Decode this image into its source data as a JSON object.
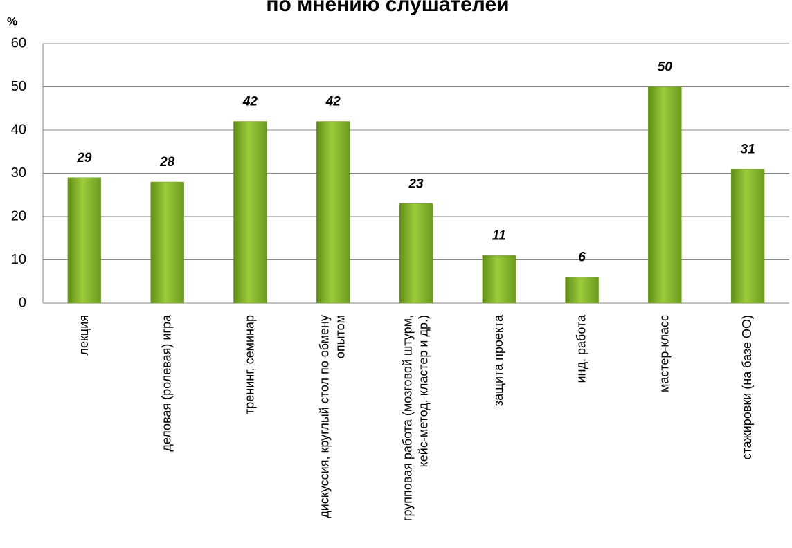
{
  "chart_data": {
    "type": "bar",
    "title": "по мнению слушателей",
    "y_label": "%",
    "categories": [
      "лекция",
      "деловая (ролевая) игра",
      "тренинг, семинар",
      "дискуссия, круглый стол по обмену опытом",
      "групповая работа (мозговой штурм, кейс-метод, кластер и др.)",
      "защита проекта",
      "инд. работа",
      "мастер-класс",
      "стажировки (на базе ОО)"
    ],
    "values": [
      29,
      28,
      42,
      42,
      23,
      11,
      6,
      50,
      31
    ],
    "color": "#9ccb3b",
    "ylim": [
      0,
      60
    ],
    "yticks": [
      0,
      10,
      20,
      30,
      40,
      50,
      60
    ],
    "grid": true
  }
}
